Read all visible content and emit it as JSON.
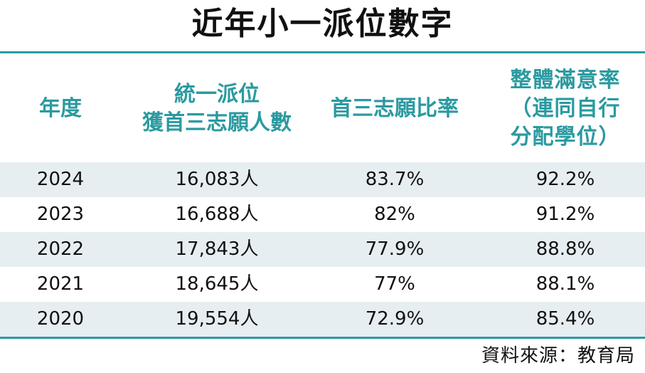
{
  "title": "近年小一派位數字",
  "header": {
    "year": "年度",
    "count": "統一派位\n獲首三志願人數",
    "first_three": "首三志願比率",
    "overall": "整體滿意率\n（連同自行\n分配學位）"
  },
  "rows": [
    {
      "year": "2024",
      "count": "16,083人",
      "first_three": "83.7%",
      "overall": "92.2%"
    },
    {
      "year": "2023",
      "count": "16,688人",
      "first_three": "82%",
      "overall": "91.2%"
    },
    {
      "year": "2022",
      "count": "17,843人",
      "first_three": "77.9%",
      "overall": "88.8%"
    },
    {
      "year": "2021",
      "count": "18,645人",
      "first_three": "77%",
      "overall": "88.1%"
    },
    {
      "year": "2020",
      "count": "19,554人",
      "first_three": "72.9%",
      "overall": "85.4%"
    }
  ],
  "source": "資料來源：教育局",
  "colors": {
    "accent": "#2a9aa0",
    "row_shade": "#e6eef2",
    "text": "#111111"
  }
}
